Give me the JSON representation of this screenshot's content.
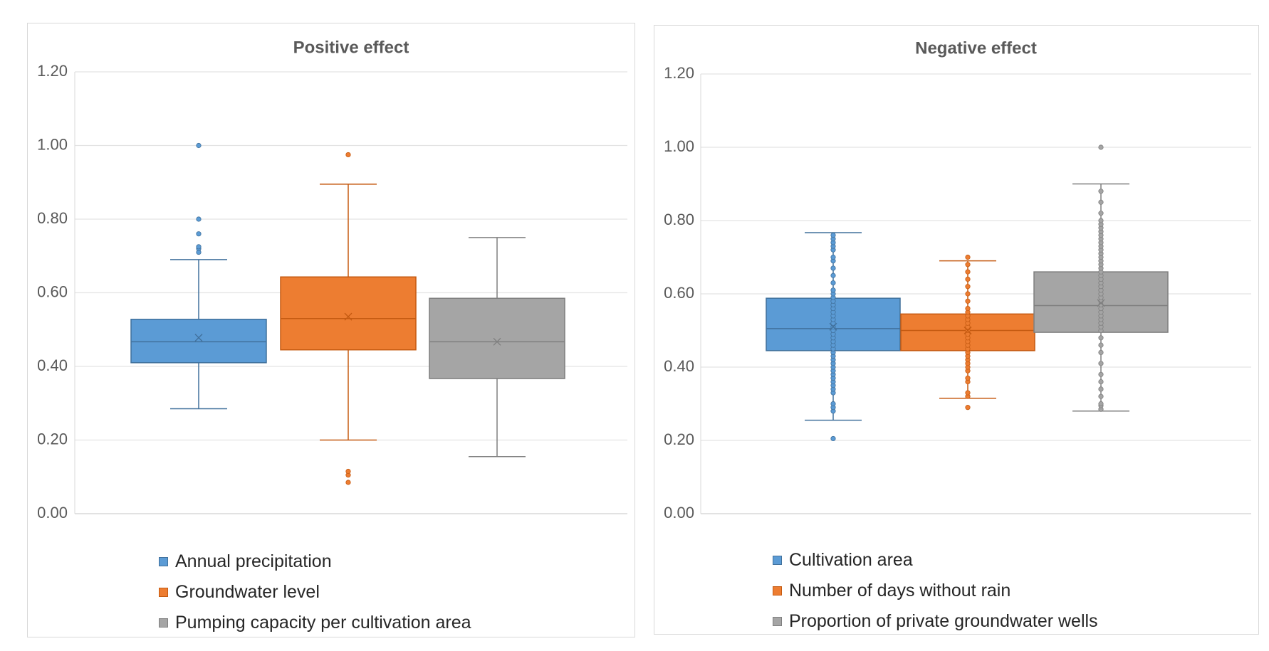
{
  "chart_data": [
    {
      "type": "box",
      "title": "Positive effect",
      "ylim": [
        0,
        1.2
      ],
      "yticks": [
        "0.00",
        "0.20",
        "0.40",
        "0.60",
        "0.80",
        "1.00",
        "1.20"
      ],
      "ytick_values": [
        0,
        0.2,
        0.4,
        0.6,
        0.8,
        1.0,
        1.2
      ],
      "legend_position": "bottom",
      "series": [
        {
          "name": "Annual precipitation",
          "color": "#5B9BD5",
          "whisker_color": "#41719C",
          "min": 0.285,
          "q1": 0.41,
          "median": 0.467,
          "q3": 0.528,
          "max": 0.69,
          "mean": 0.478,
          "points": [
            0.71,
            0.72,
            0.725,
            0.76,
            0.8,
            1.0
          ]
        },
        {
          "name": "Groundwater level",
          "color": "#ED7D31",
          "whisker_color": "#C55A11",
          "min": 0.2,
          "q1": 0.445,
          "median": 0.53,
          "q3": 0.643,
          "max": 0.895,
          "mean": 0.535,
          "points": [
            0.085,
            0.105,
            0.115,
            0.975
          ]
        },
        {
          "name": "Pumping capacity per cultivation area",
          "color": "#A5A5A5",
          "whisker_color": "#7F7F7F",
          "min": 0.155,
          "q1": 0.367,
          "median": 0.467,
          "q3": 0.585,
          "max": 0.75,
          "mean": 0.467,
          "points": []
        }
      ]
    },
    {
      "type": "box",
      "title": "Negative effect",
      "ylim": [
        0,
        1.2
      ],
      "yticks": [
        "0.00",
        "0.20",
        "0.40",
        "0.60",
        "0.80",
        "1.00",
        "1.20"
      ],
      "ytick_values": [
        0,
        0.2,
        0.4,
        0.6,
        0.8,
        1.0,
        1.2
      ],
      "legend_position": "bottom",
      "series": [
        {
          "name": "Cultivation area",
          "color": "#5B9BD5",
          "whisker_color": "#41719C",
          "min": 0.255,
          "q1": 0.445,
          "median": 0.505,
          "q3": 0.588,
          "max": 0.767,
          "mean": 0.51,
          "points": [
            0.205,
            0.28,
            0.29,
            0.3,
            0.33,
            0.34,
            0.35,
            0.36,
            0.37,
            0.38,
            0.39,
            0.4,
            0.41,
            0.42,
            0.43,
            0.44,
            0.45,
            0.46,
            0.47,
            0.48,
            0.49,
            0.5,
            0.51,
            0.52,
            0.53,
            0.54,
            0.55,
            0.56,
            0.57,
            0.58,
            0.59,
            0.6,
            0.61,
            0.63,
            0.65,
            0.67,
            0.69,
            0.7,
            0.72,
            0.73,
            0.74,
            0.75,
            0.76
          ]
        },
        {
          "name": "Number of days without rain",
          "color": "#ED7D31",
          "whisker_color": "#C55A11",
          "min": 0.315,
          "q1": 0.445,
          "median": 0.5,
          "q3": 0.545,
          "max": 0.69,
          "mean": 0.5,
          "points": [
            0.29,
            0.32,
            0.33,
            0.36,
            0.37,
            0.39,
            0.4,
            0.41,
            0.42,
            0.43,
            0.44,
            0.45,
            0.46,
            0.47,
            0.48,
            0.49,
            0.5,
            0.51,
            0.52,
            0.53,
            0.54,
            0.55,
            0.56,
            0.58,
            0.6,
            0.62,
            0.64,
            0.66,
            0.68,
            0.7
          ]
        },
        {
          "name": "Proportion of private groundwater wells",
          "color": "#A5A5A5",
          "whisker_color": "#7F7F7F",
          "min": 0.28,
          "q1": 0.495,
          "median": 0.568,
          "q3": 0.66,
          "max": 0.9,
          "mean": 0.575,
          "points": [
            0.285,
            0.295,
            0.3,
            0.32,
            0.34,
            0.36,
            0.38,
            0.41,
            0.44,
            0.46,
            0.48,
            0.5,
            0.51,
            0.52,
            0.53,
            0.54,
            0.55,
            0.56,
            0.57,
            0.58,
            0.59,
            0.6,
            0.61,
            0.62,
            0.63,
            0.64,
            0.65,
            0.66,
            0.67,
            0.68,
            0.69,
            0.7,
            0.71,
            0.72,
            0.73,
            0.74,
            0.75,
            0.76,
            0.77,
            0.78,
            0.79,
            0.8,
            0.82,
            0.85,
            0.88,
            1.0
          ]
        }
      ]
    }
  ]
}
